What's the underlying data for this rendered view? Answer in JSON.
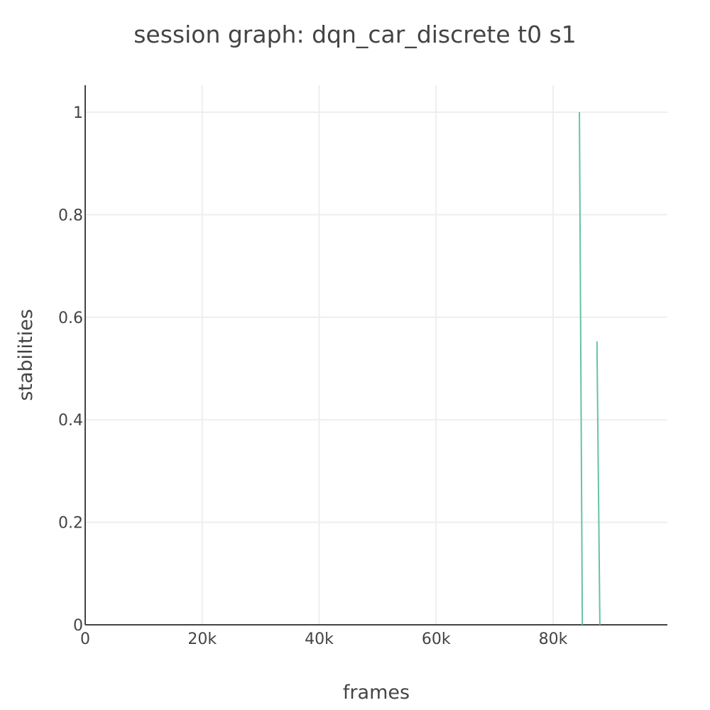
{
  "chart_data": {
    "type": "line",
    "title": "session graph: dqn_car_discrete t0 s1",
    "xlabel": "frames",
    "ylabel": "stabilities",
    "xlim": [
      0,
      100000
    ],
    "ylim": [
      0,
      1.05
    ],
    "x_ticks": [
      0,
      20000,
      40000,
      60000,
      80000
    ],
    "x_tick_labels": [
      "0",
      "20k",
      "40k",
      "60k",
      "80k"
    ],
    "y_ticks": [
      0,
      0.2,
      0.4,
      0.6,
      0.8,
      1
    ],
    "y_tick_labels": [
      "0",
      "0.2",
      "0.4",
      "0.6",
      "0.8",
      "1"
    ],
    "grid": true,
    "series": [
      {
        "color": "#66c2a5",
        "segments": [
          {
            "x": [
              84500,
              85000
            ],
            "y": [
              1.0,
              0.0
            ]
          },
          {
            "x": [
              87500,
              88000
            ],
            "y": [
              0.553,
              0.0
            ]
          }
        ]
      }
    ]
  }
}
